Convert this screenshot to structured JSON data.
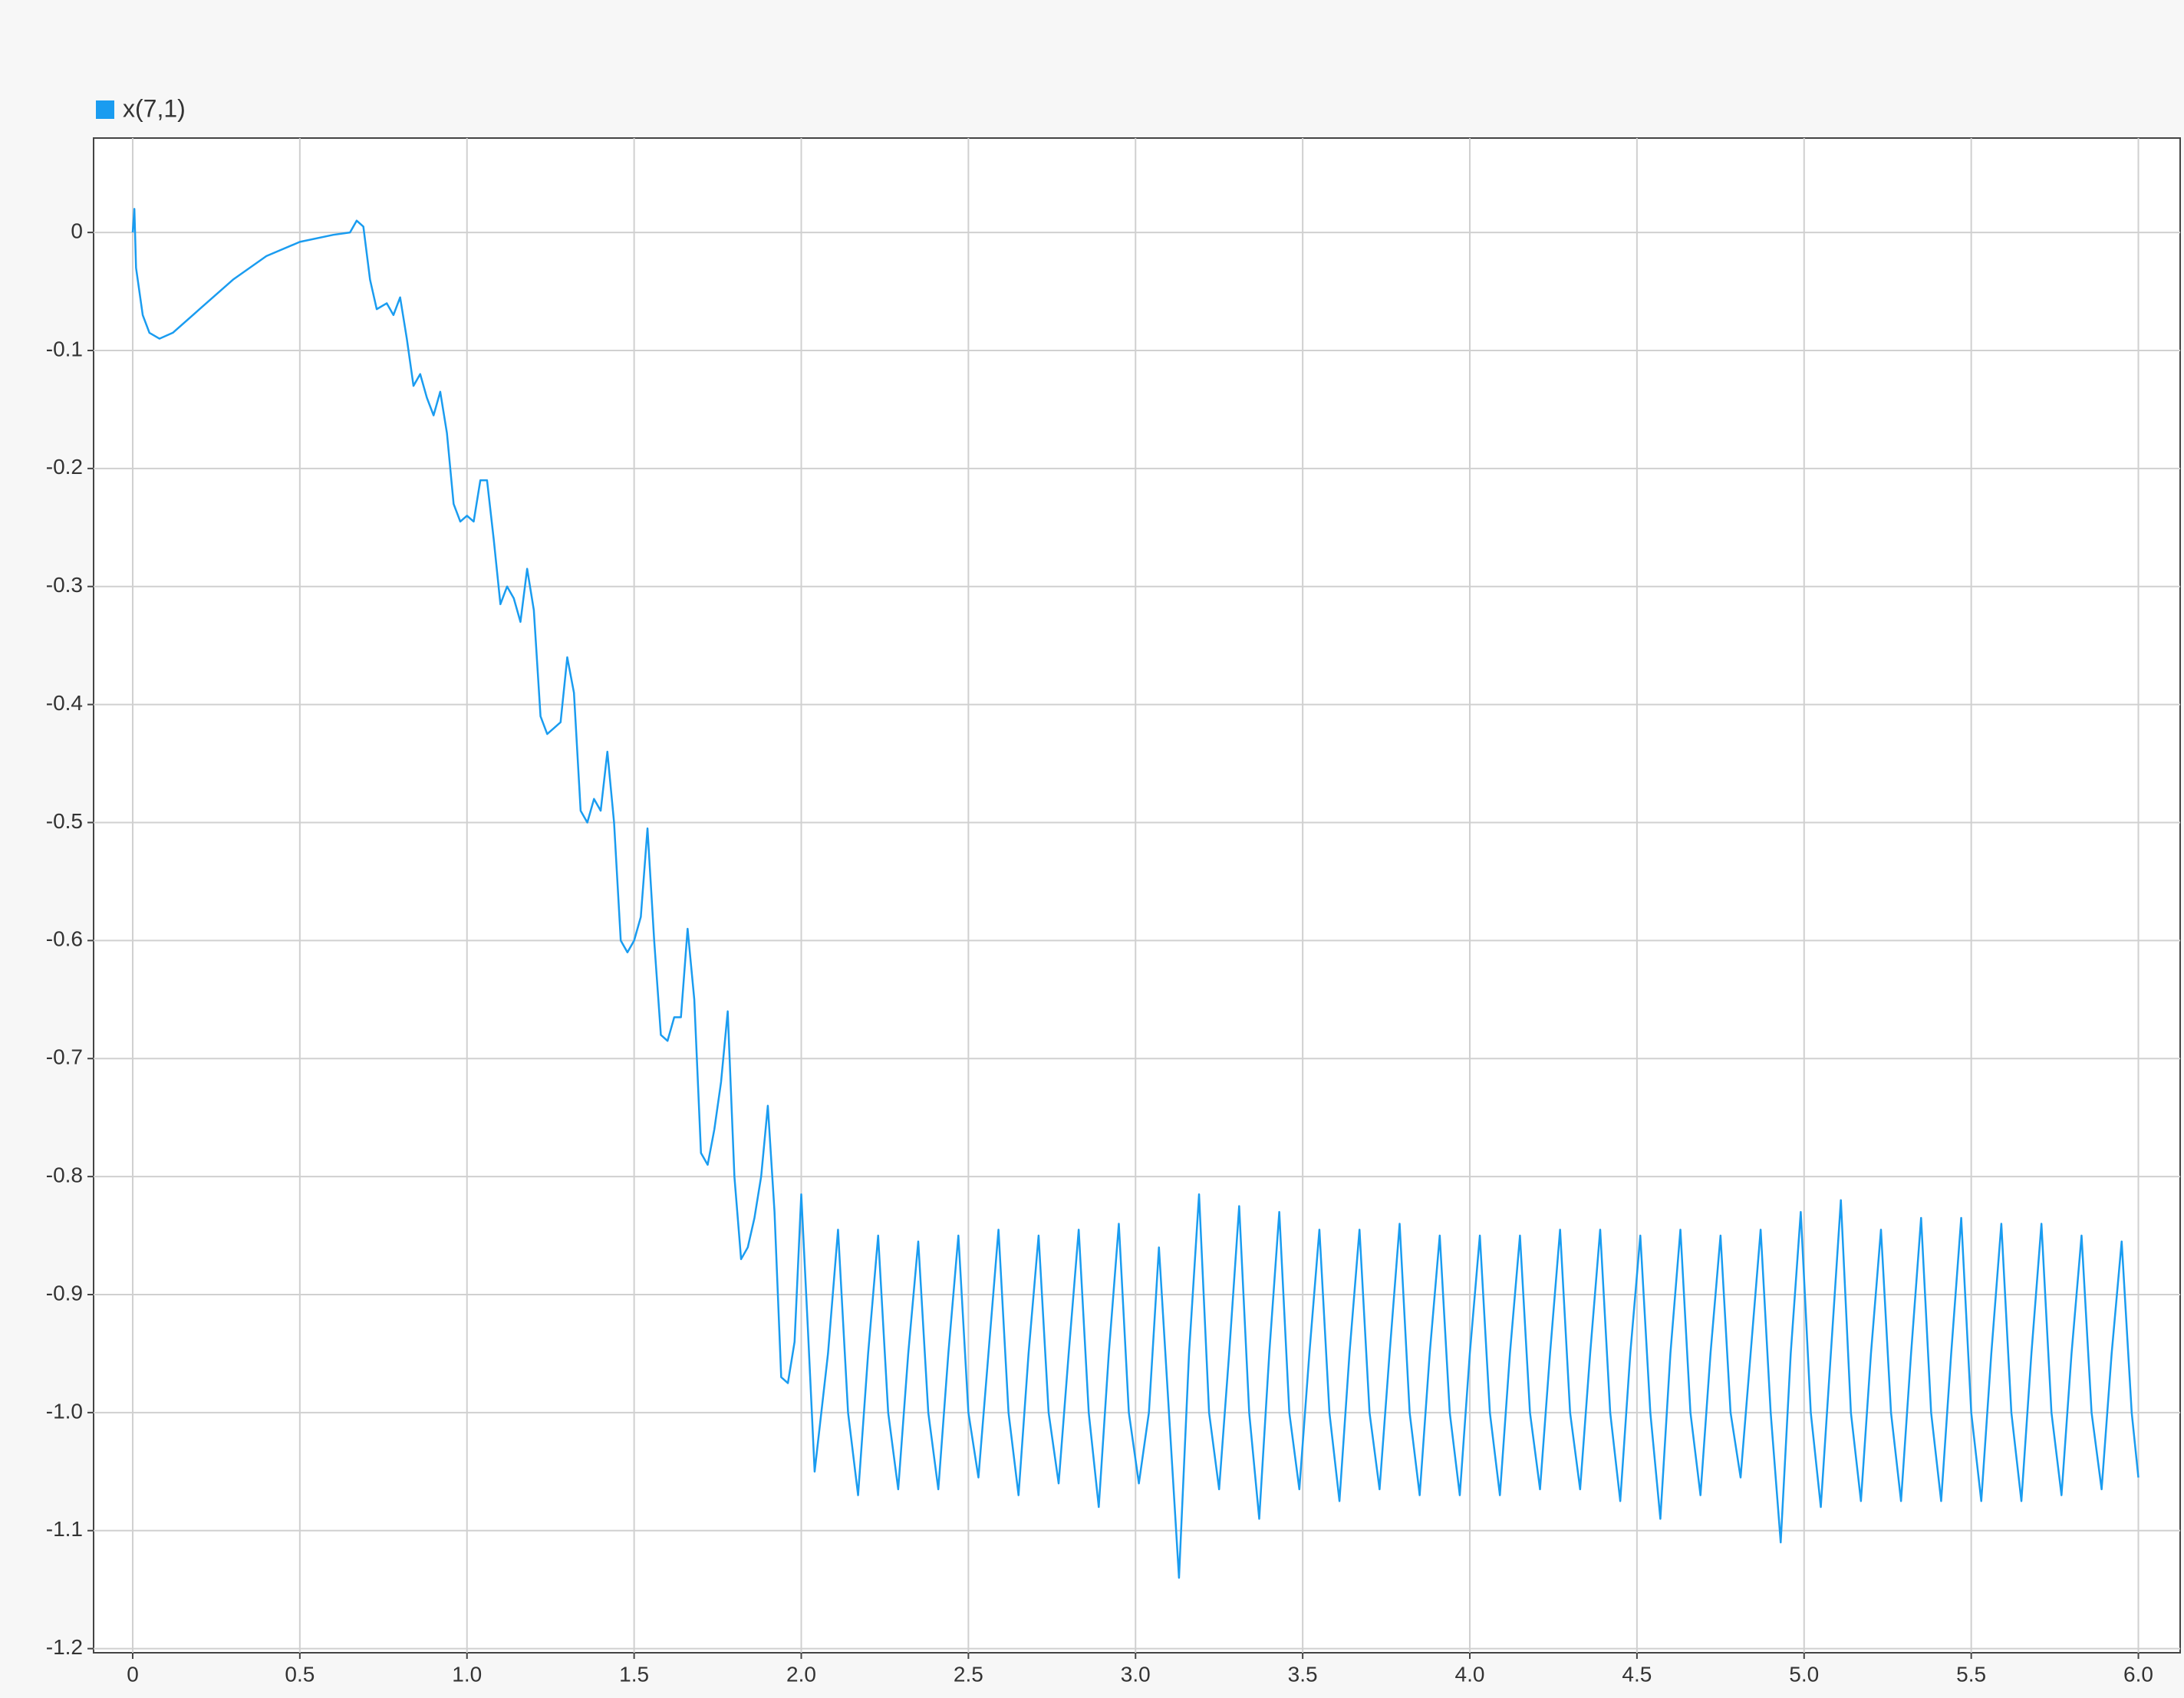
{
  "chart_data": {
    "type": "line",
    "x": [
      0,
      0.005,
      0.01,
      0.03,
      0.05,
      0.08,
      0.12,
      0.2,
      0.3,
      0.4,
      0.5,
      0.6,
      0.65,
      0.67,
      0.69,
      0.71,
      0.73,
      0.76,
      0.78,
      0.8,
      0.82,
      0.84,
      0.86,
      0.88,
      0.9,
      0.92,
      0.94,
      0.96,
      0.98,
      1.0,
      1.02,
      1.04,
      1.06,
      1.08,
      1.1,
      1.12,
      1.14,
      1.16,
      1.18,
      1.2,
      1.22,
      1.24,
      1.26,
      1.28,
      1.3,
      1.32,
      1.34,
      1.36,
      1.38,
      1.4,
      1.42,
      1.44,
      1.46,
      1.48,
      1.5,
      1.52,
      1.54,
      1.56,
      1.58,
      1.6,
      1.62,
      1.64,
      1.66,
      1.68,
      1.7,
      1.72,
      1.74,
      1.76,
      1.78,
      1.8,
      1.82,
      1.84,
      1.86,
      1.88,
      1.9,
      1.92,
      1.94,
      1.96,
      1.98,
      2.0,
      2.02,
      2.04,
      2.08,
      2.11,
      2.14,
      2.17,
      2.2,
      2.23,
      2.26,
      2.29,
      2.32,
      2.35,
      2.38,
      2.41,
      2.44,
      2.47,
      2.5,
      2.53,
      2.56,
      2.59,
      2.62,
      2.65,
      2.68,
      2.71,
      2.74,
      2.77,
      2.8,
      2.83,
      2.86,
      2.89,
      2.92,
      2.95,
      2.98,
      3.01,
      3.04,
      3.07,
      3.1,
      3.13,
      3.16,
      3.19,
      3.22,
      3.25,
      3.28,
      3.31,
      3.34,
      3.37,
      3.4,
      3.43,
      3.46,
      3.49,
      3.52,
      3.55,
      3.58,
      3.61,
      3.64,
      3.67,
      3.7,
      3.73,
      3.76,
      3.79,
      3.82,
      3.85,
      3.88,
      3.91,
      3.94,
      3.97,
      4.0,
      4.03,
      4.06,
      4.09,
      4.12,
      4.15,
      4.18,
      4.21,
      4.24,
      4.27,
      4.3,
      4.33,
      4.36,
      4.39,
      4.42,
      4.45,
      4.48,
      4.51,
      4.54,
      4.57,
      4.6,
      4.63,
      4.66,
      4.69,
      4.72,
      4.75,
      4.78,
      4.81,
      4.84,
      4.87,
      4.9,
      4.93,
      4.96,
      4.99,
      5.02,
      5.05,
      5.08,
      5.11,
      5.14,
      5.17,
      5.2,
      5.23,
      5.26,
      5.29,
      5.32,
      5.35,
      5.38,
      5.41,
      5.44,
      5.47,
      5.5,
      5.53,
      5.56,
      5.59,
      5.62,
      5.65,
      5.68,
      5.71,
      5.74,
      5.77,
      5.8,
      5.83,
      5.86,
      5.89,
      5.92,
      5.95,
      5.98,
      6.0
    ],
    "series": [
      {
        "name": "x(7,1)",
        "color": "#1a9cf0",
        "values": [
          0,
          0.02,
          -0.03,
          -0.07,
          -0.085,
          -0.09,
          -0.085,
          -0.065,
          -0.04,
          -0.02,
          -0.008,
          -0.002,
          0,
          0.01,
          0.005,
          -0.04,
          -0.065,
          -0.06,
          -0.07,
          -0.055,
          -0.09,
          -0.13,
          -0.12,
          -0.14,
          -0.155,
          -0.135,
          -0.17,
          -0.23,
          -0.245,
          -0.24,
          -0.245,
          -0.21,
          -0.21,
          -0.26,
          -0.315,
          -0.3,
          -0.31,
          -0.33,
          -0.285,
          -0.32,
          -0.41,
          -0.425,
          -0.42,
          -0.415,
          -0.36,
          -0.39,
          -0.49,
          -0.5,
          -0.48,
          -0.49,
          -0.44,
          -0.5,
          -0.6,
          -0.61,
          -0.6,
          -0.58,
          -0.505,
          -0.6,
          -0.68,
          -0.685,
          -0.665,
          -0.665,
          -0.59,
          -0.65,
          -0.78,
          -0.79,
          -0.76,
          -0.72,
          -0.66,
          -0.8,
          -0.87,
          -0.86,
          -0.835,
          -0.8,
          -0.74,
          -0.83,
          -0.97,
          -0.975,
          -0.94,
          -0.815,
          -0.93,
          -1.05,
          -0.95,
          -0.845,
          -1.0,
          -1.07,
          -0.95,
          -0.85,
          -1.0,
          -1.065,
          -0.95,
          -0.855,
          -1.0,
          -1.065,
          -0.95,
          -0.85,
          -1.0,
          -1.055,
          -0.95,
          -0.845,
          -1.0,
          -1.07,
          -0.95,
          -0.85,
          -1.0,
          -1.06,
          -0.95,
          -0.845,
          -1.0,
          -1.08,
          -0.95,
          -0.84,
          -1.0,
          -1.06,
          -1.0,
          -0.86,
          -1.0,
          -1.14,
          -0.95,
          -0.815,
          -1.0,
          -1.065,
          -0.95,
          -0.825,
          -1.0,
          -1.09,
          -0.95,
          -0.83,
          -1.0,
          -1.065,
          -0.95,
          -0.845,
          -1.0,
          -1.075,
          -0.95,
          -0.845,
          -1.0,
          -1.065,
          -0.95,
          -0.84,
          -1.0,
          -1.07,
          -0.95,
          -0.85,
          -1.0,
          -1.07,
          -0.95,
          -0.85,
          -1.0,
          -1.07,
          -0.95,
          -0.85,
          -1.0,
          -1.065,
          -0.95,
          -0.845,
          -1.0,
          -1.065,
          -0.95,
          -0.845,
          -1.0,
          -1.075,
          -0.95,
          -0.85,
          -1.0,
          -1.09,
          -0.95,
          -0.845,
          -1.0,
          -1.07,
          -0.95,
          -0.85,
          -1.0,
          -1.055,
          -0.95,
          -0.845,
          -1.0,
          -1.11,
          -0.95,
          -0.83,
          -1.0,
          -1.08,
          -0.95,
          -0.82,
          -1.0,
          -1.075,
          -0.95,
          -0.845,
          -1.0,
          -1.075,
          -0.95,
          -0.835,
          -1.0,
          -1.075,
          -0.95,
          -0.835,
          -1.0,
          -1.075,
          -0.95,
          -0.84,
          -1.0,
          -1.075,
          -0.95,
          -0.84,
          -1.0,
          -1.07,
          -0.95,
          -0.85,
          -1.0,
          -1.065,
          -0.95,
          -0.855,
          -1.0,
          -1.055
        ]
      }
    ],
    "xlim": [
      -0.117,
      6.125
    ],
    "ylim": [
      -1.2035,
      0.08
    ],
    "xticks": [
      0,
      0.5,
      {
        "value": 1,
        "label": "1.0"
      },
      1.5,
      {
        "value": 2,
        "label": "2.0"
      },
      2.5,
      {
        "value": 3,
        "label": "3.0"
      },
      3.5,
      {
        "value": 4,
        "label": "4.0"
      },
      4.5,
      {
        "value": 5,
        "label": "5.0"
      },
      5.5,
      {
        "value": 6,
        "label": "6.0"
      }
    ],
    "yticks": [
      0,
      -0.1,
      -0.2,
      -0.3,
      -0.4,
      -0.5,
      -0.6,
      -0.7,
      -0.8,
      -0.9,
      {
        "value": -1,
        "label": "-1.0"
      },
      -1.1,
      -1.2
    ],
    "grid": true
  }
}
